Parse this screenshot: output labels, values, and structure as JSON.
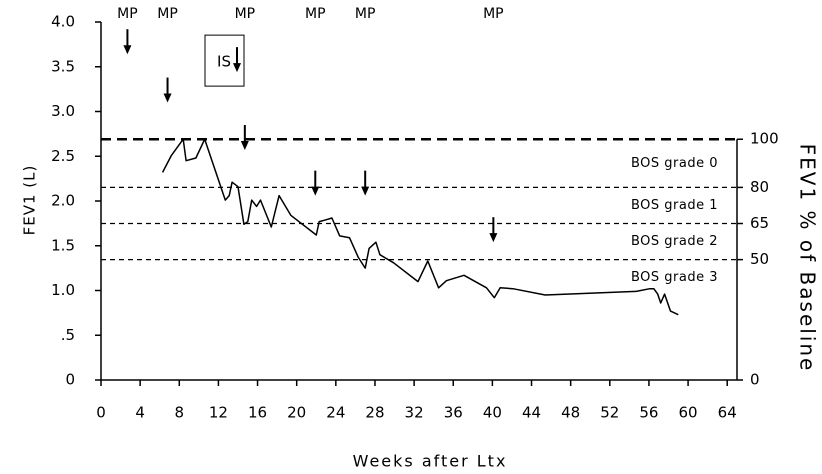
{
  "chart_data": {
    "type": "line",
    "x_label": "Weeks after Ltx",
    "y_label": "FEV1 (L)",
    "y2_label": "FEV1 % of Baseline",
    "xlim": [
      0,
      65
    ],
    "xticks": [
      0,
      4,
      8,
      12,
      16,
      20,
      24,
      28,
      32,
      36,
      40,
      44,
      48,
      52,
      56,
      60,
      64
    ],
    "ylim": [
      0,
      4
    ],
    "yticks": [
      0,
      {
        "value": 0.5,
        "label": ".5"
      },
      {
        "value": 1,
        "label": "1.0"
      },
      {
        "value": 1.5,
        "label": "1.5"
      },
      {
        "value": 2,
        "label": "2.0"
      },
      {
        "value": 2.5,
        "label": "2.5"
      },
      {
        "value": 3,
        "label": "3.0"
      },
      {
        "value": 3.5,
        "label": "3.5"
      },
      {
        "value": 4,
        "label": "4.0"
      }
    ],
    "y2lim": [
      0,
      148.7
    ],
    "y2ticks": [
      0,
      50,
      65,
      80,
      100
    ],
    "bos_labels": [
      "BOS grade 0",
      "BOS grade 1",
      "BOS grade 2",
      "BOS grade 3"
    ],
    "x": [
      6.3,
      7.2,
      8.4,
      8.7,
      9.7,
      10.6,
      12.7,
      13.1,
      13.4,
      14.0,
      14.6,
      15.0,
      15.4,
      15.9,
      16.3,
      17.4,
      18.2,
      19.4,
      22.0,
      22.3,
      23.0,
      23.6,
      24.4,
      25.4,
      26.3,
      27.0,
      27.4,
      28.1,
      28.5,
      29.9,
      32.4,
      33.4,
      34.5,
      35.3,
      37.1,
      39.4,
      40.2,
      40.8,
      42.1,
      45.4,
      54.7,
      56.1,
      56.5,
      56.9,
      57.2,
      57.6,
      58.2,
      59.0
    ],
    "series": [
      {
        "color": "#000000",
        "values": [
          2.32,
          2.51,
          2.69,
          2.45,
          2.48,
          2.69,
          2.01,
          2.06,
          2.21,
          2.16,
          1.74,
          1.77,
          2.01,
          1.94,
          2.01,
          1.71,
          2.06,
          1.84,
          1.62,
          1.77,
          1.79,
          1.81,
          1.61,
          1.59,
          1.37,
          1.25,
          1.47,
          1.54,
          1.4,
          1.31,
          1.1,
          1.33,
          1.03,
          1.11,
          1.17,
          1.03,
          0.92,
          1.03,
          1.02,
          0.95,
          0.99,
          1.02,
          1.02,
          0.96,
          0.86,
          0.96,
          0.77,
          0.73
        ]
      }
    ],
    "markers": [
      {
        "label": "MP",
        "x": 2.7,
        "y": 3.64
      },
      {
        "label": "MP",
        "x": 6.8,
        "y": 3.1
      },
      {
        "label": "MP",
        "x": 14.7,
        "y": 2.57
      },
      {
        "label": "MP",
        "x": 21.9,
        "y": 2.06
      },
      {
        "label": "MP",
        "x": 27.0,
        "y": 2.06
      },
      {
        "label": "MP",
        "x": 40.1,
        "y": 1.54
      }
    ],
    "boxed_markers": [
      {
        "label": "IS",
        "x": 13.9,
        "y": 3.44
      }
    ]
  }
}
